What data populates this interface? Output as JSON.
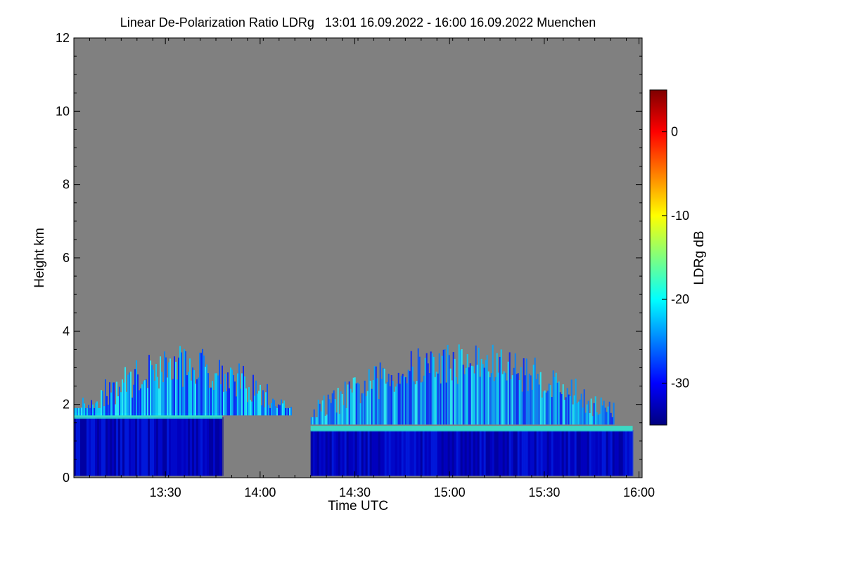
{
  "chart_data": {
    "type": "heatmap",
    "title": "Linear De-Polarization Ratio LDRg   13:01 16.09.2022 - 16:00 16.09.2022 Muenchen",
    "xlabel": "Time UTC",
    "ylabel": "Height km",
    "x_ticks": [
      "13:30",
      "14:00",
      "14:30",
      "15:00",
      "15:30",
      "16:00"
    ],
    "x_tick_minutes": [
      30,
      60,
      90,
      120,
      150,
      180
    ],
    "xlim_minutes": [
      1,
      181
    ],
    "y_ticks": [
      0,
      2,
      4,
      6,
      8,
      10,
      12
    ],
    "ylim": [
      0,
      12
    ],
    "colorbar": {
      "label": "LDRg dB",
      "ticks": [
        0,
        -10,
        -20,
        -30
      ],
      "range": [
        -35,
        5
      ],
      "colors": [
        "#00007f",
        "#0000ff",
        "#007fff",
        "#00ffff",
        "#7fff7f",
        "#ffff00",
        "#ff7f00",
        "#ff0000",
        "#7f0000"
      ]
    },
    "background_color": "#808080",
    "regions": [
      {
        "label": "boundary-layer",
        "start_min": 1,
        "end_min": 48,
        "top_km": 1.65
      },
      {
        "label": "cloud-plumes",
        "start_min": 1,
        "end_min": 70,
        "top_km": 3.3
      },
      {
        "label": "boundary-layer",
        "start_min": 76,
        "end_min": 178,
        "top_km": 1.3
      },
      {
        "label": "cloud-plumes",
        "start_min": 76,
        "end_min": 172,
        "top_km": 3.4
      }
    ]
  }
}
